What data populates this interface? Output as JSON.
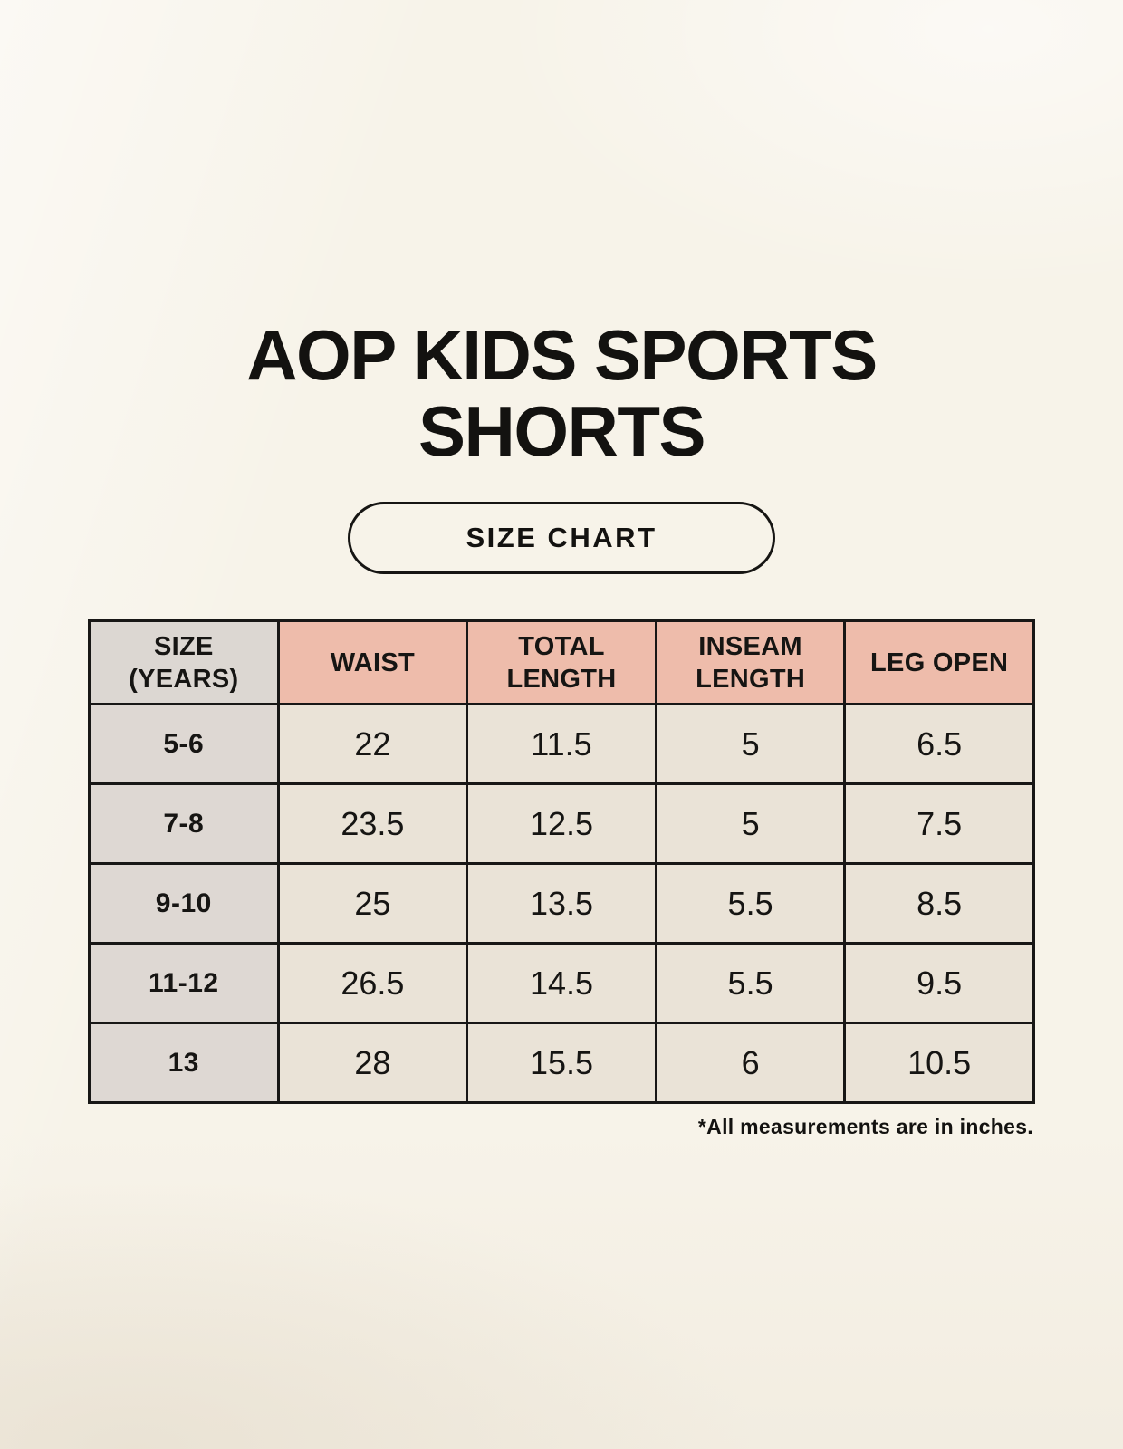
{
  "page": {
    "title": "AOP KIDS SPORTS\nSHORTS",
    "badge_label": "SIZE CHART"
  },
  "colors": {
    "background": "#f7f3e9",
    "header_accent": "#eebcab",
    "header_size_cell": "#dcd7d2",
    "row_label_cell": "#ded8d3",
    "data_cell": "#eae3d7",
    "border": "#181716",
    "text": "#131210"
  },
  "chart_data": {
    "type": "table",
    "title": "AOP KIDS SPORTS SHORTS",
    "subtitle": "SIZE CHART",
    "columns": [
      "SIZE\n(YEARS)",
      "WAIST",
      "TOTAL\nLENGTH",
      "INSEAM\nLENGTH",
      "LEG OPEN"
    ],
    "rows": [
      [
        "5-6",
        "22",
        "11.5",
        "5",
        "6.5"
      ],
      [
        "7-8",
        "23.5",
        "12.5",
        "5",
        "7.5"
      ],
      [
        "9-10",
        "25",
        "13.5",
        "5.5",
        "8.5"
      ],
      [
        "11-12",
        "26.5",
        "14.5",
        "5.5",
        "9.5"
      ],
      [
        "13",
        "28",
        "15.5",
        "6",
        "10.5"
      ]
    ],
    "note": "*All measurements are in inches."
  }
}
